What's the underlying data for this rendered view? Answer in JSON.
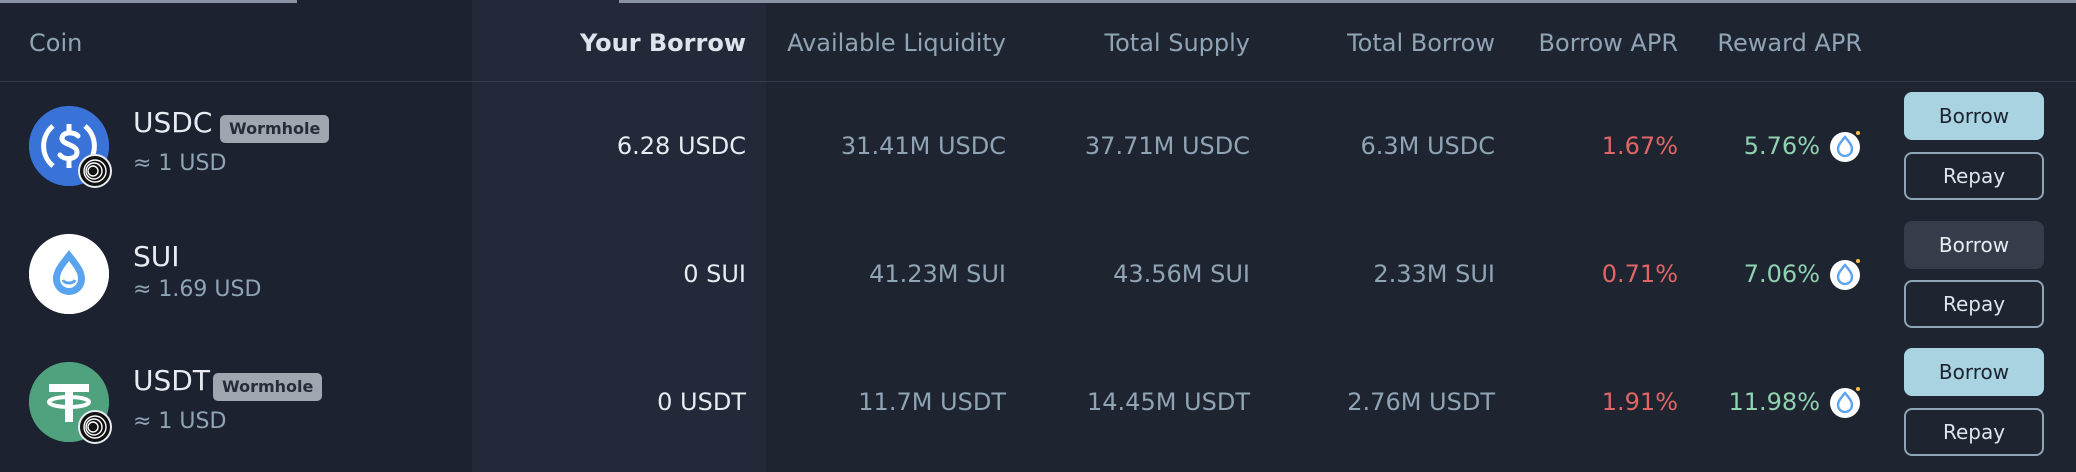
{
  "header": {
    "coin": "Coin",
    "your_borrow": "Your Borrow",
    "available_liquidity": "Available Liquidity",
    "total_supply": "Total Supply",
    "total_borrow": "Total Borrow",
    "borrow_apr": "Borrow APR",
    "reward_apr": "Reward APR"
  },
  "rows": [
    {
      "symbol": "USDC",
      "tag": "Wormhole",
      "price": "≈ 1 USD",
      "your_borrow": "6.28 USDC",
      "available_liquidity": "31.41M USDC",
      "total_supply": "37.71M USDC",
      "total_borrow": "6.3M USDC",
      "borrow_apr": "1.67%",
      "reward_apr": "5.76%",
      "borrow_label": "Borrow",
      "repay_label": "Repay"
    },
    {
      "symbol": "SUI",
      "price": "≈ 1.69 USD",
      "your_borrow": "0 SUI",
      "available_liquidity": "41.23M SUI",
      "total_supply": "43.56M SUI",
      "total_borrow": "2.33M SUI",
      "borrow_apr": "0.71%",
      "reward_apr": "7.06%",
      "borrow_label": "Borrow",
      "repay_label": "Repay"
    },
    {
      "symbol": "USDT",
      "tag": "Wormhole",
      "price": "≈ 1 USD",
      "your_borrow": "0 USDT",
      "available_liquidity": "11.7M USDT",
      "total_supply": "14.45M USDT",
      "total_borrow": "2.76M USDT",
      "borrow_apr": "1.91%",
      "reward_apr": "11.98%",
      "borrow_label": "Borrow",
      "repay_label": "Repay"
    }
  ],
  "colors": {
    "background": "#1f2431",
    "accent": "#a9d3e0",
    "negative": "#e06666",
    "positive": "#8fd3b0",
    "usdc": "#3a73d8",
    "sui": "#5aa3ee",
    "usdt": "#4fa27d"
  }
}
